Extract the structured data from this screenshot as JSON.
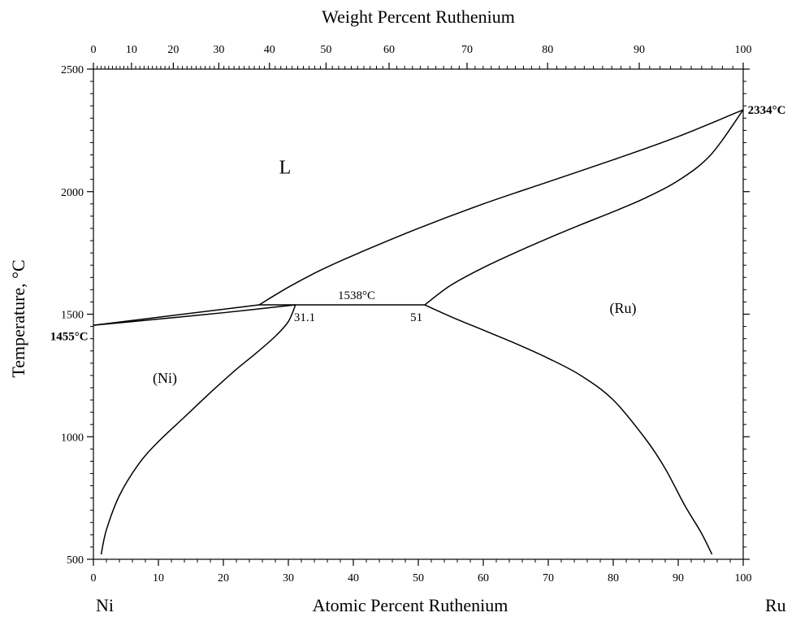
{
  "chart_data": {
    "type": "line",
    "title": "",
    "top_xlabel": "Weight Percent Ruthenium",
    "xlabel": "Atomic Percent Ruthenium",
    "ylabel": "Temperature, °C",
    "xlim": [
      0,
      100
    ],
    "ylim": [
      500,
      2500
    ],
    "x_ticks": [
      0,
      10,
      20,
      30,
      40,
      50,
      60,
      70,
      80,
      90,
      100
    ],
    "y_ticks": [
      500,
      1000,
      1500,
      2000,
      2500
    ],
    "top_ticks": [
      {
        "label": "0",
        "at": 0
      },
      {
        "label": "10",
        "at": 5.86
      },
      {
        "label": "20",
        "at": 12.3
      },
      {
        "label": "30",
        "at": 19.3
      },
      {
        "label": "40",
        "at": 27.1
      },
      {
        "label": "50",
        "at": 35.8
      },
      {
        "label": "60",
        "at": 45.5
      },
      {
        "label": "70",
        "at": 57.5
      },
      {
        "label": "80",
        "at": 69.9
      },
      {
        "label": "90",
        "at": 84.0
      },
      {
        "label": "100",
        "at": 100
      }
    ],
    "left_element": "Ni",
    "right_element": "Ru",
    "series": [
      {
        "x": [
          0,
          25.5
        ],
        "y": [
          1455,
          1538
        ]
      },
      {
        "x": [
          0,
          10,
          20,
          31.1
        ],
        "y": [
          1455,
          1480,
          1506,
          1538
        ]
      },
      {
        "x": [
          25.5,
          31.1,
          51
        ],
        "y": [
          1538,
          1538,
          1538
        ]
      },
      {
        "x": [
          25.5,
          30,
          35,
          40,
          50,
          60,
          70,
          80,
          90,
          100
        ],
        "y": [
          1538,
          1610,
          1680,
          1740,
          1850,
          1950,
          2040,
          2130,
          2225,
          2334
        ]
      },
      {
        "x": [
          51,
          55,
          60,
          65,
          70,
          75,
          80,
          85,
          90,
          95,
          100
        ],
        "y": [
          1538,
          1618,
          1690,
          1752,
          1810,
          1865,
          1918,
          1975,
          2045,
          2150,
          2334
        ]
      },
      {
        "x": [
          1.2,
          2,
          4,
          7,
          10,
          14,
          18,
          22,
          25,
          28,
          30,
          31.1
        ],
        "y": [
          520,
          620,
          760,
          890,
          980,
          1080,
          1180,
          1275,
          1340,
          1410,
          1470,
          1538
        ]
      },
      {
        "x": [
          51,
          55,
          60,
          65,
          70,
          75,
          80,
          85,
          88,
          91,
          93.5,
          95.2
        ],
        "y": [
          1538,
          1490,
          1435,
          1380,
          1320,
          1250,
          1150,
          990,
          870,
          720,
          610,
          520
        ]
      }
    ],
    "annotations": [
      {
        "text": "L",
        "x": 29.5,
        "y": 2100,
        "style": "liquid"
      },
      {
        "text": "(Ni)",
        "x": 11,
        "y": 1240,
        "style": "phase"
      },
      {
        "text": "(Ru)",
        "x": 81.5,
        "y": 1525,
        "style": "phase"
      },
      {
        "text": "1538°C",
        "x": 40.5,
        "y": 1578,
        "style": "normal"
      },
      {
        "text": "31.1",
        "x": 32.5,
        "y": 1488,
        "style": "normal"
      },
      {
        "text": "51",
        "x": 49.7,
        "y": 1488,
        "style": "normal"
      },
      {
        "text": "1455°C",
        "x": -0.8,
        "y": 1410,
        "style": "bold-left"
      },
      {
        "text": "2334°C",
        "x": 100.7,
        "y": 2334,
        "style": "bold-right"
      }
    ]
  }
}
